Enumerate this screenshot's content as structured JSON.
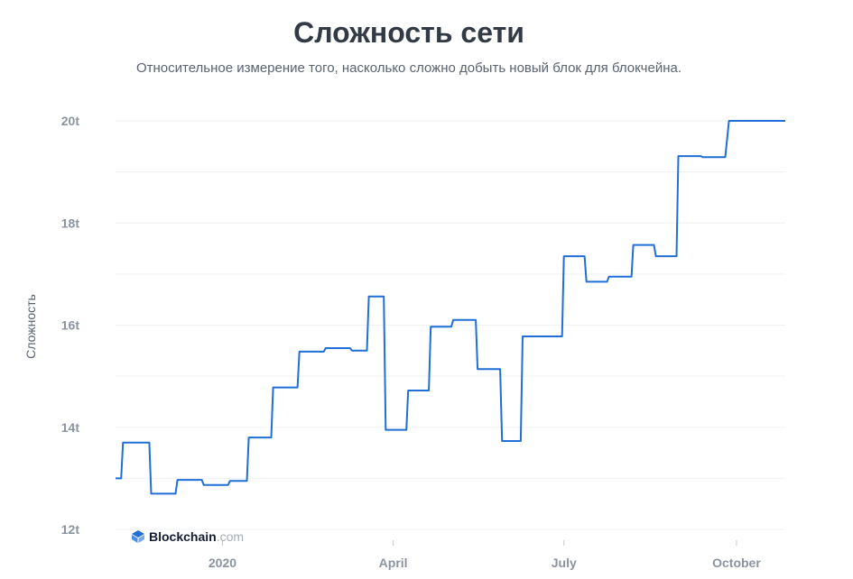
{
  "chart_data": {
    "type": "line",
    "title": "Сложность сети",
    "subtitle": "Относительное измерение того, насколько сложно добыть новый блок для блокчейна.",
    "ylabel": "Сложность",
    "xlabel": "",
    "grid": true,
    "ylim": [
      12,
      20
    ],
    "xlim": [
      "2019-11-05",
      "2020-10-27"
    ],
    "y_ticks": [
      {
        "value": 12,
        "label": "12t"
      },
      {
        "value": 14,
        "label": "14t"
      },
      {
        "value": 16,
        "label": "16t"
      },
      {
        "value": 18,
        "label": "18t"
      },
      {
        "value": 20,
        "label": "20t"
      }
    ],
    "x_ticks": [
      {
        "date": "2020-01-01",
        "label": "2020"
      },
      {
        "date": "2020-04-01",
        "label": "April"
      },
      {
        "date": "2020-07-01",
        "label": "July"
      },
      {
        "date": "2020-10-01",
        "label": "October"
      }
    ],
    "series": [
      {
        "color": "#1f6fd6",
        "points": [
          [
            "2019-11-05",
            13.0
          ],
          [
            "2019-11-08",
            13.0
          ],
          [
            "2019-11-09",
            13.7
          ],
          [
            "2019-11-23",
            13.7
          ],
          [
            "2019-11-24",
            12.7
          ],
          [
            "2019-12-07",
            12.7
          ],
          [
            "2019-12-08",
            12.97
          ],
          [
            "2019-12-21",
            12.97
          ],
          [
            "2019-12-22",
            12.87
          ],
          [
            "2020-01-04",
            12.87
          ],
          [
            "2020-01-05",
            12.95
          ],
          [
            "2020-01-14",
            12.95
          ],
          [
            "2020-01-15",
            13.8
          ],
          [
            "2020-01-27",
            13.8
          ],
          [
            "2020-01-28",
            14.78
          ],
          [
            "2020-02-10",
            14.78
          ],
          [
            "2020-02-11",
            15.48
          ],
          [
            "2020-02-24",
            15.48
          ],
          [
            "2020-02-25",
            15.55
          ],
          [
            "2020-03-09",
            15.55
          ],
          [
            "2020-03-10",
            15.5
          ],
          [
            "2020-03-18",
            15.5
          ],
          [
            "2020-03-19",
            16.56
          ],
          [
            "2020-03-26",
            16.56
          ],
          [
            "2020-03-27",
            16.56
          ],
          [
            "2020-03-28",
            13.95
          ],
          [
            "2020-04-08",
            13.95
          ],
          [
            "2020-04-09",
            14.72
          ],
          [
            "2020-04-20",
            14.72
          ],
          [
            "2020-04-21",
            15.97
          ],
          [
            "2020-05-02",
            15.97
          ],
          [
            "2020-05-03",
            16.1
          ],
          [
            "2020-05-15",
            16.1
          ],
          [
            "2020-05-16",
            15.14
          ],
          [
            "2020-05-28",
            15.14
          ],
          [
            "2020-05-29",
            13.73
          ],
          [
            "2020-06-08",
            13.73
          ],
          [
            "2020-06-09",
            15.78
          ],
          [
            "2020-06-30",
            15.78
          ],
          [
            "2020-07-01",
            17.35
          ],
          [
            "2020-07-12",
            17.35
          ],
          [
            "2020-07-13",
            16.85
          ],
          [
            "2020-07-24",
            16.85
          ],
          [
            "2020-07-25",
            16.95
          ],
          [
            "2020-08-06",
            16.95
          ],
          [
            "2020-08-07",
            17.57
          ],
          [
            "2020-08-18",
            17.57
          ],
          [
            "2020-08-19",
            17.35
          ],
          [
            "2020-08-30",
            17.35
          ],
          [
            "2020-08-31",
            19.31
          ],
          [
            "2020-09-12",
            19.31
          ],
          [
            "2020-09-13",
            19.29
          ],
          [
            "2020-09-25",
            19.29
          ],
          [
            "2020-09-27",
            20.0
          ],
          [
            "2020-10-27",
            20.0
          ]
        ]
      }
    ]
  },
  "watermark": {
    "bold": "Blockchain",
    "light": ".com",
    "icon": "blockchain-logo-icon"
  }
}
